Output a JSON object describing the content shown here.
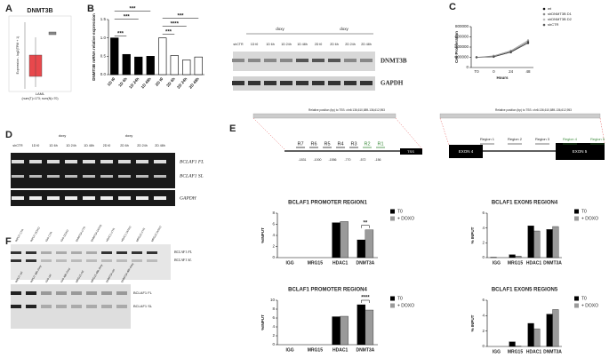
{
  "figure": {
    "panel_labels": [
      "A",
      "B",
      "C",
      "D",
      "E",
      "F"
    ],
    "panel_a": {
      "title": "DNMT3B",
      "ylabel": "Expression - log2(TPM + 1)",
      "xlabel": "LAML",
      "note": "(num(T)=173; num(N)=70)"
    },
    "blot_b": {
      "lanes": [
        "shCTR",
        "1D t0",
        "1D 6h",
        "1D 24h",
        "1D 48h",
        "2D t0",
        "2D 6h",
        "2D 24h",
        "2D 48h"
      ],
      "header": [
        "doxy",
        "doxy"
      ],
      "bands": [
        "DNMT3B",
        "GAPDH"
      ]
    },
    "gel_d": {
      "lanes": [
        "shCTR",
        "1D t0",
        "1D 6h",
        "1D 24h",
        "1D 48h",
        "2D t0",
        "2D 6h",
        "2D 24h",
        "2D 48h"
      ],
      "header": [
        "doxy",
        "doxy"
      ],
      "bands": [
        "BCLAF1 FL",
        "BCLAF1 SL",
        "GAPDH"
      ]
    },
    "schematic_e": {
      "promoter_title": "Relative position (bp) to TSS: chr6:136,610,889-136,612,953",
      "exon_title": "Relative position (bp) to TSS: chr6:136,610,889-136,612,953",
      "regions": [
        "R7",
        "R6",
        "R5",
        "R4",
        "R3",
        "R2",
        "R1"
      ],
      "tss": "TSS",
      "positions": [
        "-1831",
        "-1000",
        "-1556",
        "-770",
        "-572",
        "-156"
      ],
      "exons": [
        "EXON 4",
        "EXON 5"
      ],
      "exon_regions": [
        "Region 1",
        "Region 2",
        "Region 3",
        "Region 4",
        "Region 5"
      ]
    },
    "gel_f": {
      "lanes_top": [
        "INPUT CTR",
        "INPUT DOXO",
        "IGG CTR",
        "IGG DOXO",
        "DNMT3A CTR",
        "DNMT3A DOXO",
        "HDAC1 CTR",
        "HDAC1 DOXO",
        "MRG15 CTR",
        "MRG15 DOXO"
      ],
      "bands_top": [
        "BCLAF1 FL",
        "BCLAF1 SL"
      ],
      "lanes_bottom": [
        "INPUT ctrl",
        "INPUT 48h doxy",
        "IGG ctrl",
        "IGG 48h doxy",
        "MRG15 ctrl",
        "MRG15 48h doxy",
        "DNMT3A ctrl",
        "DNMT3A 48h doxy"
      ],
      "bands_bottom": [
        "BCLAF1 FL",
        "BCLAF1 SL"
      ]
    }
  },
  "chart_data": [
    {
      "type": "bar",
      "ylabel": "DNMT3B mRNA relative expression",
      "categories": [
        "1D t0",
        "1D 6h",
        "1D 24h",
        "1D 48h",
        "2D t0",
        "2D 6h",
        "2D 24h",
        "2D 48h"
      ],
      "values": [
        1.0,
        0.55,
        0.48,
        0.5,
        1.0,
        0.52,
        0.4,
        0.48
      ],
      "colors": [
        "#000000",
        "#000000",
        "#000000",
        "#000000",
        "#ffffff",
        "#ffffff",
        "#ffffff",
        "#ffffff"
      ],
      "ylim": [
        0,
        1.5
      ],
      "yticks": [
        {
          "value": 0,
          "label": "0.0"
        },
        {
          "value": 0.5,
          "label": "0.5"
        },
        {
          "value": 1,
          "label": "1.0"
        },
        {
          "value": 1.5,
          "label": "1.5"
        }
      ],
      "annotations": [
        "***",
        "***",
        "***",
        "***",
        "****",
        "***"
      ]
    },
    {
      "type": "line",
      "ylabel": "Cell Proliferation",
      "xlabel": "Hours",
      "categories": [
        "T0",
        "0",
        "24",
        "48"
      ],
      "series": [
        {
          "name": "wt",
          "color": "#111111",
          "values": [
            200000,
            210000,
            300000,
            480000
          ]
        },
        {
          "name": "shDNMT3B D1",
          "color": "#888888",
          "values": [
            200000,
            230000,
            330000,
            530000
          ]
        },
        {
          "name": "shDNMT3B D2",
          "color": "#bbbbbb",
          "values": [
            200000,
            220000,
            320000,
            510000
          ]
        },
        {
          "name": "shCTR",
          "color": "#555555",
          "values": [
            200000,
            215000,
            310000,
            500000
          ]
        }
      ],
      "ylim": [
        0,
        800000
      ],
      "yticks": [
        0,
        200000,
        400000,
        600000,
        800000
      ]
    },
    {
      "type": "grouped-bar",
      "title": "BCLAF1 PROMOTER REGION1",
      "ylabel": "%INPUT",
      "categories": [
        "IGG",
        "MRG15",
        "HDAC1",
        "DNMT3A"
      ],
      "series": [
        {
          "name": "T0",
          "color": "#000000",
          "values": [
            0,
            0,
            6.3,
            3.2
          ]
        },
        {
          "name": "+ DOXO",
          "color": "#9a9a9a",
          "values": [
            0,
            0,
            6.5,
            5.0
          ]
        }
      ],
      "ylim": [
        0,
        8
      ],
      "yticks": [
        0,
        2,
        4,
        6,
        8
      ],
      "annotations": [
        "**"
      ]
    },
    {
      "type": "grouped-bar",
      "title": "BCLAF1 PROMOTER REGION4",
      "ylabel": "%INPUT",
      "categories": [
        "IGG",
        "MRG15",
        "HDAC1",
        "DNMT3A"
      ],
      "series": [
        {
          "name": "T0",
          "color": "#000000",
          "values": [
            0,
            0,
            6.3,
            9.0
          ]
        },
        {
          "name": "+ DOXO",
          "color": "#9a9a9a",
          "values": [
            0,
            0,
            6.4,
            7.8
          ]
        }
      ],
      "ylim": [
        0,
        10
      ],
      "yticks": [
        0,
        2,
        4,
        6,
        8,
        10
      ],
      "annotations": [
        "****"
      ]
    },
    {
      "type": "grouped-bar",
      "title": "BCLAF1 EXON5 REGION4",
      "ylabel": "% INPUT",
      "categories": [
        "IGG",
        "MRG15",
        "HDAC1",
        "DNMT3A"
      ],
      "series": [
        {
          "name": "T0",
          "color": "#000000",
          "values": [
            0.05,
            0.4,
            4.3,
            3.8
          ]
        },
        {
          "name": "+ DOXO",
          "color": "#9a9a9a",
          "values": [
            0,
            0.2,
            3.6,
            4.2
          ]
        }
      ],
      "ylim": [
        0,
        6
      ],
      "yticks": [
        0,
        2,
        4,
        6
      ]
    },
    {
      "type": "grouped-bar",
      "title": "BCLAF1 EXON5 REGION5",
      "ylabel": "% INPUT",
      "categories": [
        "IGG",
        "MRG15",
        "HDAC1",
        "DNMT3A"
      ],
      "series": [
        {
          "name": "T0",
          "color": "#000000",
          "values": [
            0,
            0.6,
            3.0,
            4.2
          ]
        },
        {
          "name": "+ DOXO",
          "color": "#9a9a9a",
          "values": [
            0,
            0.05,
            2.3,
            4.8
          ]
        }
      ],
      "ylim": [
        0,
        6
      ],
      "yticks": [
        0,
        2,
        4,
        6
      ]
    }
  ]
}
